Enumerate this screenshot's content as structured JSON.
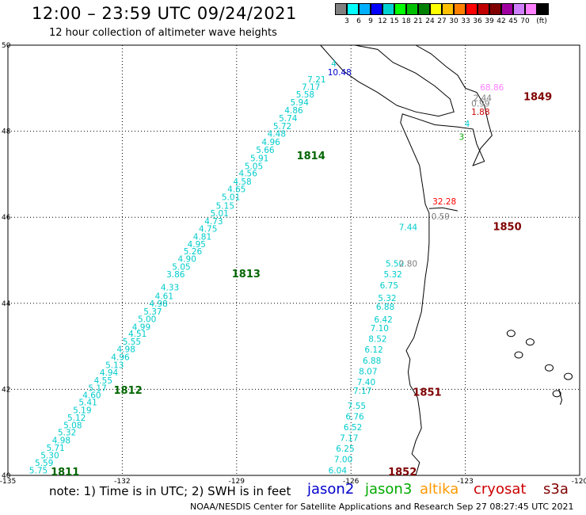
{
  "header": {
    "title": "12:00 – 23:59 UTC 09/24/2021",
    "subtitle": "12 hour collection of altimeter wave heights"
  },
  "color_scale": {
    "colors": [
      "#808080",
      "#00ffff",
      "#00b0ff",
      "#0000ff",
      "#00d0d0",
      "#00ff00",
      "#00c000",
      "#008000",
      "#ffff00",
      "#ffc000",
      "#ff8000",
      "#ff0000",
      "#c00000",
      "#800000",
      "#a000a0",
      "#d080ff",
      "#ff80ff",
      "#000000"
    ],
    "labels": [
      "3",
      "6",
      "9",
      "12",
      "15",
      "18",
      "21",
      "24",
      "27",
      "30",
      "33",
      "36",
      "39",
      "42",
      "45",
      "70"
    ],
    "unit": "(ft)"
  },
  "axes": {
    "lon_ticks": [
      "-135",
      "-132",
      "-129",
      "-126",
      "-123",
      "-120"
    ],
    "lat_ticks": [
      "50",
      "48",
      "46",
      "44",
      "42",
      "40"
    ]
  },
  "track_jason3": {
    "color": "#00cccc",
    "points": [
      {
        "v": "5.75",
        "lon": -134.2,
        "lat": 40.05
      },
      {
        "v": "5.59",
        "lon": -134.05,
        "lat": 40.22
      },
      {
        "v": "5.30",
        "lon": -133.9,
        "lat": 40.4
      },
      {
        "v": "5.71",
        "lon": -133.75,
        "lat": 40.57
      },
      {
        "v": "4.98",
        "lon": -133.6,
        "lat": 40.75
      },
      {
        "v": "5.32",
        "lon": -133.45,
        "lat": 40.93
      },
      {
        "v": "5.08",
        "lon": -133.3,
        "lat": 41.1
      },
      {
        "v": "5.12",
        "lon": -133.2,
        "lat": 41.27
      },
      {
        "v": "5.19",
        "lon": -133.05,
        "lat": 41.45
      },
      {
        "v": "5.41",
        "lon": -132.9,
        "lat": 41.63
      },
      {
        "v": "4.60",
        "lon": -132.8,
        "lat": 41.8
      },
      {
        "v": "5.17",
        "lon": -132.65,
        "lat": 41.96
      },
      {
        "v": "4.55",
        "lon": -132.5,
        "lat": 42.14
      },
      {
        "v": "4.94",
        "lon": -132.35,
        "lat": 42.32
      },
      {
        "v": "5.13",
        "lon": -132.2,
        "lat": 42.5
      },
      {
        "v": "4.96",
        "lon": -132.05,
        "lat": 42.68
      },
      {
        "v": "4.98",
        "lon": -131.9,
        "lat": 42.86
      },
      {
        "v": "5.55",
        "lon": -131.75,
        "lat": 43.04
      },
      {
        "v": "4.51",
        "lon": -131.6,
        "lat": 43.22
      },
      {
        "v": "4.99",
        "lon": -131.5,
        "lat": 43.38
      },
      {
        "v": "5.00",
        "lon": -131.35,
        "lat": 43.56
      },
      {
        "v": "5.37",
        "lon": -131.2,
        "lat": 43.74
      },
      {
        "v": "4.98",
        "lon": -131.05,
        "lat": 43.92
      },
      {
        "v": "4.61",
        "lon": -130.9,
        "lat": 44.1
      },
      {
        "v": "4.33",
        "lon": -130.75,
        "lat": 44.3
      },
      {
        "v": "3.86",
        "lon": -130.6,
        "lat": 44.6
      },
      {
        "v": "5.05",
        "lon": -130.45,
        "lat": 44.78
      },
      {
        "v": "4.90",
        "lon": -130.3,
        "lat": 44.96
      },
      {
        "v": "5.26",
        "lon": -130.15,
        "lat": 45.14
      },
      {
        "v": "4.95",
        "lon": -130.05,
        "lat": 45.3
      },
      {
        "v": "4.81",
        "lon": -129.9,
        "lat": 45.48
      },
      {
        "v": "4.75",
        "lon": -129.75,
        "lat": 45.66
      },
      {
        "v": "4.73",
        "lon": -129.6,
        "lat": 45.84
      },
      {
        "v": "5.01",
        "lon": -129.45,
        "lat": 46.02
      },
      {
        "v": "5.15",
        "lon": -129.3,
        "lat": 46.2
      },
      {
        "v": "5.01",
        "lon": -129.15,
        "lat": 46.4
      },
      {
        "v": "4.65",
        "lon": -129.0,
        "lat": 46.58
      },
      {
        "v": "4.58",
        "lon": -128.85,
        "lat": 46.76
      },
      {
        "v": "4.56",
        "lon": -128.7,
        "lat": 46.95
      },
      {
        "v": "5.05",
        "lon": -128.55,
        "lat": 47.12
      },
      {
        "v": "5.91",
        "lon": -128.4,
        "lat": 47.3
      },
      {
        "v": "5.66",
        "lon": -128.25,
        "lat": 47.5
      },
      {
        "v": "4.96",
        "lon": -128.1,
        "lat": 47.68
      },
      {
        "v": "4.48",
        "lon": -127.95,
        "lat": 47.87
      },
      {
        "v": "5.72",
        "lon": -127.8,
        "lat": 48.05
      },
      {
        "v": "5.74",
        "lon": -127.65,
        "lat": 48.23
      },
      {
        "v": "4.86",
        "lon": -127.5,
        "lat": 48.42
      },
      {
        "v": "5.94",
        "lon": -127.35,
        "lat": 48.6
      },
      {
        "v": "5.58",
        "lon": -127.2,
        "lat": 48.78
      },
      {
        "v": "7.17",
        "lon": -127.05,
        "lat": 48.96
      },
      {
        "v": "7.21",
        "lon": -126.9,
        "lat": 49.13
      },
      {
        "v": "4",
        "lon": -126.45,
        "lat": 49.5
      }
    ]
  },
  "track_jason3_south": {
    "color": "#00cccc",
    "points": [
      {
        "v": "6.04",
        "lon": -126.35,
        "lat": 40.05
      },
      {
        "v": "7.00",
        "lon": -126.2,
        "lat": 40.3
      },
      {
        "v": "6.25",
        "lon": -126.15,
        "lat": 40.55
      },
      {
        "v": "7.17",
        "lon": -126.05,
        "lat": 40.8
      },
      {
        "v": "6.52",
        "lon": -125.95,
        "lat": 41.05
      },
      {
        "v": "6.76",
        "lon": -125.9,
        "lat": 41.3
      },
      {
        "v": "7.55",
        "lon": -125.85,
        "lat": 41.55
      },
      {
        "v": "7.17",
        "lon": -125.7,
        "lat": 41.9
      },
      {
        "v": "7.40",
        "lon": -125.6,
        "lat": 42.1
      },
      {
        "v": "8.07",
        "lon": -125.55,
        "lat": 42.35
      },
      {
        "v": "6.88",
        "lon": -125.45,
        "lat": 42.6
      },
      {
        "v": "6.12",
        "lon": -125.4,
        "lat": 42.85
      },
      {
        "v": "8.52",
        "lon": -125.3,
        "lat": 43.1
      },
      {
        "v": "7.10",
        "lon": -125.25,
        "lat": 43.35
      },
      {
        "v": "6.42",
        "lon": -125.15,
        "lat": 43.55
      },
      {
        "v": "6.88",
        "lon": -125.1,
        "lat": 43.85
      },
      {
        "v": "5.32",
        "lon": -125.05,
        "lat": 44.05
      },
      {
        "v": "6.75",
        "lon": -125.0,
        "lat": 44.35
      },
      {
        "v": "5.32",
        "lon": -124.9,
        "lat": 44.6
      },
      {
        "v": "5.50",
        "lon": -124.85,
        "lat": 44.85
      },
      {
        "v": "7.44",
        "lon": -124.5,
        "lat": 45.7
      }
    ]
  },
  "misc_values": [
    {
      "v": "10.48",
      "lon": -126.3,
      "lat": 49.3,
      "color": "#0000cc"
    },
    {
      "v": "68.86",
      "lon": -122.3,
      "lat": 48.95,
      "color": "#ff80ff"
    },
    {
      "v": "2.44",
      "lon": -122.55,
      "lat": 48.7,
      "color": "#808080"
    },
    {
      "v": "0.99",
      "lon": -122.6,
      "lat": 48.57,
      "color": "#808080"
    },
    {
      "v": "1.88",
      "lon": -122.6,
      "lat": 48.38,
      "color": "#cc0000"
    },
    {
      "v": "4",
      "lon": -122.95,
      "lat": 48.1,
      "color": "#00cccc"
    },
    {
      "v": "3",
      "lon": -123.1,
      "lat": 47.8,
      "color": "#00aa00"
    },
    {
      "v": "32.28",
      "lon": -123.55,
      "lat": 46.3,
      "color": "#ff0000"
    },
    {
      "v": "0.59",
      "lon": -123.65,
      "lat": 45.95,
      "color": "#808080"
    },
    {
      "v": "2.80",
      "lon": -124.5,
      "lat": 44.85,
      "color": "#808080"
    }
  ],
  "orbit_labels": [
    {
      "v": "1814",
      "lon": -127.05,
      "lat": 47.35,
      "color": "#006600"
    },
    {
      "v": "1813",
      "lon": -128.75,
      "lat": 44.6,
      "color": "#006600"
    },
    {
      "v": "1812",
      "lon": -131.85,
      "lat": 41.9,
      "color": "#006600"
    },
    {
      "v": "1811",
      "lon": -133.5,
      "lat": 40.0,
      "color": "#006600"
    },
    {
      "v": "1849",
      "lon": -121.1,
      "lat": 48.72,
      "color": "#800000"
    },
    {
      "v": "1850",
      "lon": -121.9,
      "lat": 45.7,
      "color": "#800000"
    },
    {
      "v": "1851",
      "lon": -124.0,
      "lat": 41.85,
      "color": "#800000"
    },
    {
      "v": "1852",
      "lon": -124.65,
      "lat": 40.0,
      "color": "#800000"
    }
  ],
  "footer": {
    "note": "note: 1) Time is in UTC; 2) SWH is in feet",
    "missions": [
      {
        "name": "jason2",
        "color": "#0000cc"
      },
      {
        "name": "jason3",
        "color": "#00aa00"
      },
      {
        "name": "altika",
        "color": "#ff9900"
      },
      {
        "name": "cryosat",
        "color": "#cc0000"
      },
      {
        "name": "s3a",
        "color": "#800000"
      }
    ],
    "credit": "NOAA/NESDIS Center for Satellite Applications and Research    Sep 27 08:27:45 UTC 2021"
  }
}
